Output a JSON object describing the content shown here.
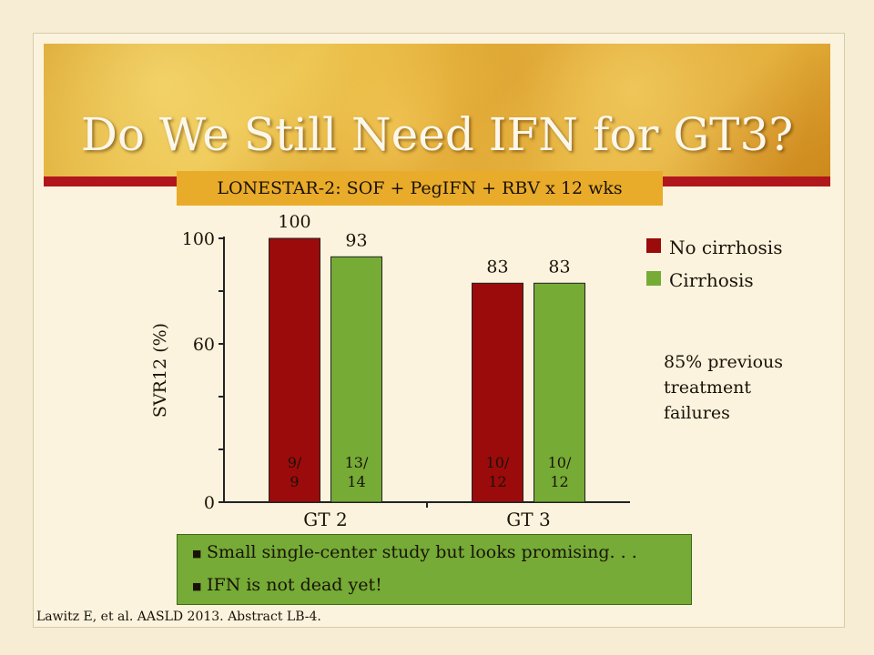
{
  "slide": {
    "title": "Do We Still Need IFN for GT3?",
    "subtitle": "LONESTAR-2: SOF + PegIFN + RBV x 12 wks",
    "note": "85% previous treatment failures",
    "bullets": [
      "Small single-center study but looks promising. . .",
      "IFN is not dead yet!"
    ],
    "citation": "Lawitz E, et al. AASLD 2013. Abstract LB-4.",
    "bullet_icon": "square-bullet-icon"
  },
  "chart_data": {
    "type": "bar",
    "title": "",
    "xlabel": "",
    "ylabel": "SVR12 (%)",
    "ylim": [
      0,
      100
    ],
    "yticks": [
      0,
      20,
      40,
      60,
      80,
      100
    ],
    "categories": [
      "GT 2",
      "GT 3"
    ],
    "series": [
      {
        "name": "No cirrhosis",
        "color": "#9b0b0b",
        "values": [
          100,
          83
        ],
        "labels": [
          "9/\n9",
          "10/\n12"
        ]
      },
      {
        "name": "Cirrhosis",
        "color": "#76ab36",
        "values": [
          93,
          83
        ],
        "labels": [
          "13/\n14",
          "10/\n12"
        ]
      }
    ],
    "legend_position": "right",
    "grid": false
  }
}
